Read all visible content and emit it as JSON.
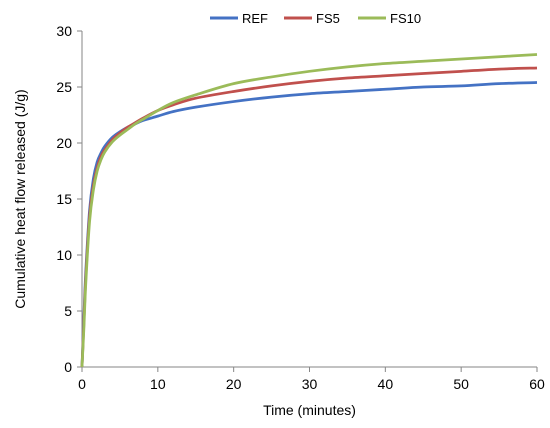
{
  "chart_data": {
    "type": "line",
    "xlabel": "Time (minutes)",
    "ylabel": "Cumulative heat flow released (J/g)",
    "xlim": [
      0,
      60
    ],
    "ylim": [
      0,
      30
    ],
    "x_ticks": [
      "0",
      "10",
      "20",
      "30",
      "40",
      "50",
      "60"
    ],
    "y_ticks": [
      "0",
      "5",
      "10",
      "15",
      "20",
      "25",
      "30"
    ],
    "grid": false,
    "legend_position": "top",
    "x": [
      0,
      0.25,
      0.5,
      1,
      1.5,
      2,
      2.5,
      3,
      4,
      5,
      6,
      7,
      8,
      10,
      12,
      15,
      20,
      25,
      30,
      35,
      40,
      45,
      50,
      55,
      60
    ],
    "series": [
      {
        "name": "REF",
        "color": "#4472C4",
        "values": [
          0,
          4.5,
          8.5,
          14.0,
          16.8,
          18.3,
          19.1,
          19.7,
          20.5,
          21.0,
          21.4,
          21.7,
          22.0,
          22.4,
          22.8,
          23.2,
          23.7,
          24.1,
          24.4,
          24.6,
          24.8,
          25.0,
          25.1,
          25.3,
          25.4
        ]
      },
      {
        "name": "FS5",
        "color": "#C0504D",
        "values": [
          0,
          4.0,
          8.0,
          13.5,
          16.2,
          17.8,
          18.8,
          19.4,
          20.3,
          20.9,
          21.4,
          21.8,
          22.2,
          22.9,
          23.4,
          24.0,
          24.6,
          25.1,
          25.5,
          25.8,
          26.0,
          26.2,
          26.4,
          26.6,
          26.7
        ]
      },
      {
        "name": "FS10",
        "color": "#9BBB59",
        "values": [
          0,
          3.5,
          7.5,
          13.0,
          15.8,
          17.5,
          18.5,
          19.2,
          20.1,
          20.7,
          21.2,
          21.7,
          22.1,
          22.9,
          23.6,
          24.3,
          25.3,
          25.9,
          26.4,
          26.8,
          27.1,
          27.3,
          27.5,
          27.7,
          27.9
        ]
      }
    ]
  }
}
